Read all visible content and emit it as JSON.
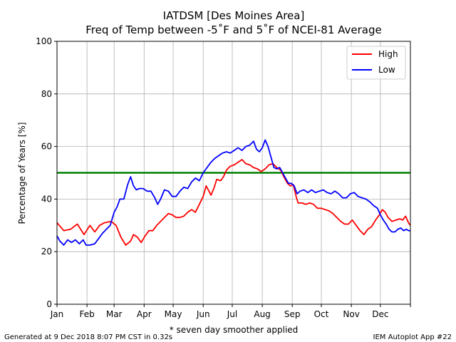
{
  "header": {
    "title_line1": "IATDSM [Des Moines Area]",
    "title_line2": "Freq of Temp between -5˚F and 5˚F of NCEI-81 Average"
  },
  "footer": {
    "generated": "Generated at 9 Dec 2018 8:07 PM CST in 0.32s",
    "app": "IEM Autoplot App #22"
  },
  "chart_data": {
    "type": "line",
    "xlabel": "* seven day smoother applied",
    "ylabel": "Percentage of Years [%]",
    "xlim": [
      1,
      366
    ],
    "ylim": [
      0,
      100
    ],
    "grid": true,
    "legend_position": "top-right",
    "x_ticks": [
      {
        "label": "Jan",
        "day": 1
      },
      {
        "label": "Feb",
        "day": 32
      },
      {
        "label": "Mar",
        "day": 60
      },
      {
        "label": "Apr",
        "day": 91
      },
      {
        "label": "May",
        "day": 121
      },
      {
        "label": "Jun",
        "day": 152
      },
      {
        "label": "Jul",
        "day": 182
      },
      {
        "label": "Aug",
        "day": 213
      },
      {
        "label": "Sep",
        "day": 244
      },
      {
        "label": "Oct",
        "day": 274
      },
      {
        "label": "Nov",
        "day": 305
      },
      {
        "label": "Dec",
        "day": 335
      }
    ],
    "y_ticks": [
      0,
      20,
      40,
      60,
      80,
      100
    ],
    "reference_line": {
      "value": 50,
      "color": "#008000"
    },
    "series": [
      {
        "name": "High",
        "color": "#ff0000",
        "points": [
          [
            1,
            31
          ],
          [
            8,
            28
          ],
          [
            15,
            28.5
          ],
          [
            22,
            30.5
          ],
          [
            29,
            26.5
          ],
          [
            35,
            30
          ],
          [
            40,
            27.5
          ],
          [
            45,
            30
          ],
          [
            50,
            31
          ],
          [
            57,
            31.5
          ],
          [
            62,
            30
          ],
          [
            67,
            25.5
          ],
          [
            72,
            22.5
          ],
          [
            77,
            24
          ],
          [
            80,
            26.5
          ],
          [
            84,
            25.5
          ],
          [
            88,
            23.5
          ],
          [
            92,
            26
          ],
          [
            96,
            28
          ],
          [
            100,
            28
          ],
          [
            104,
            30
          ],
          [
            108,
            31.5
          ],
          [
            112,
            33
          ],
          [
            116,
            34.5
          ],
          [
            120,
            34
          ],
          [
            124,
            33
          ],
          [
            128,
            33
          ],
          [
            132,
            33.5
          ],
          [
            136,
            35
          ],
          [
            140,
            36
          ],
          [
            144,
            35
          ],
          [
            148,
            38
          ],
          [
            152,
            41
          ],
          [
            155,
            45
          ],
          [
            158,
            43
          ],
          [
            160,
            41.5
          ],
          [
            163,
            44
          ],
          [
            166,
            47.5
          ],
          [
            170,
            47
          ],
          [
            173,
            48.5
          ],
          [
            176,
            51
          ],
          [
            180,
            52.5
          ],
          [
            184,
            53
          ],
          [
            188,
            54
          ],
          [
            192,
            55
          ],
          [
            196,
            53.5
          ],
          [
            200,
            53
          ],
          [
            204,
            52
          ],
          [
            208,
            51.5
          ],
          [
            212,
            50.5
          ],
          [
            216,
            51.5
          ],
          [
            220,
            53
          ],
          [
            224,
            53.5
          ],
          [
            228,
            52
          ],
          [
            232,
            51
          ],
          [
            236,
            48
          ],
          [
            239,
            46
          ],
          [
            242,
            45
          ],
          [
            245,
            45.5
          ],
          [
            248,
            41
          ],
          [
            250,
            38.5
          ],
          [
            254,
            38.5
          ],
          [
            258,
            38
          ],
          [
            262,
            38.5
          ],
          [
            266,
            38
          ],
          [
            270,
            36.5
          ],
          [
            274,
            36.5
          ],
          [
            278,
            36
          ],
          [
            282,
            35.5
          ],
          [
            286,
            34.5
          ],
          [
            290,
            33
          ],
          [
            294,
            31.5
          ],
          [
            298,
            30.5
          ],
          [
            302,
            30.5
          ],
          [
            306,
            32
          ],
          [
            310,
            30
          ],
          [
            314,
            28
          ],
          [
            318,
            26.5
          ],
          [
            322,
            28.5
          ],
          [
            326,
            29.5
          ],
          [
            330,
            32
          ],
          [
            334,
            34
          ],
          [
            337,
            36
          ],
          [
            340,
            35
          ],
          [
            343,
            33
          ],
          [
            347,
            31.5
          ],
          [
            351,
            32
          ],
          [
            355,
            32.5
          ],
          [
            358,
            32
          ],
          [
            361,
            33.5
          ],
          [
            364,
            31
          ],
          [
            366,
            30
          ]
        ]
      },
      {
        "name": "Low",
        "color": "#0000ff",
        "points": [
          [
            1,
            26
          ],
          [
            4,
            24
          ],
          [
            8,
            22.5
          ],
          [
            12,
            24.5
          ],
          [
            16,
            23.5
          ],
          [
            20,
            24.5
          ],
          [
            24,
            23
          ],
          [
            28,
            24.5
          ],
          [
            31,
            22.5
          ],
          [
            35,
            22.5
          ],
          [
            40,
            23
          ],
          [
            44,
            25
          ],
          [
            48,
            27
          ],
          [
            52,
            28.5
          ],
          [
            56,
            30
          ],
          [
            60,
            35
          ],
          [
            63,
            37
          ],
          [
            66,
            40
          ],
          [
            70,
            40
          ],
          [
            74,
            45.5
          ],
          [
            77,
            48.5
          ],
          [
            80,
            45
          ],
          [
            83,
            43.5
          ],
          [
            86,
            44
          ],
          [
            90,
            44
          ],
          [
            94,
            43
          ],
          [
            98,
            43
          ],
          [
            102,
            40.5
          ],
          [
            105,
            38
          ],
          [
            108,
            40
          ],
          [
            112,
            43.5
          ],
          [
            116,
            43
          ],
          [
            120,
            41
          ],
          [
            124,
            41
          ],
          [
            128,
            43
          ],
          [
            132,
            44.5
          ],
          [
            136,
            44
          ],
          [
            140,
            46.5
          ],
          [
            144,
            48
          ],
          [
            148,
            47
          ],
          [
            152,
            50
          ],
          [
            156,
            52
          ],
          [
            160,
            54
          ],
          [
            164,
            55.5
          ],
          [
            168,
            56.5
          ],
          [
            172,
            57.5
          ],
          [
            176,
            58
          ],
          [
            180,
            57.5
          ],
          [
            184,
            58.5
          ],
          [
            188,
            59.5
          ],
          [
            192,
            58.5
          ],
          [
            196,
            60
          ],
          [
            200,
            60.5
          ],
          [
            204,
            62
          ],
          [
            207,
            59
          ],
          [
            210,
            58
          ],
          [
            213,
            59.5
          ],
          [
            216,
            62.5
          ],
          [
            219,
            60
          ],
          [
            222,
            56
          ],
          [
            225,
            52
          ],
          [
            228,
            51.5
          ],
          [
            231,
            52
          ],
          [
            234,
            50
          ],
          [
            237,
            48
          ],
          [
            240,
            46
          ],
          [
            243,
            46
          ],
          [
            246,
            45
          ],
          [
            249,
            42
          ],
          [
            252,
            43
          ],
          [
            256,
            43.5
          ],
          [
            260,
            42.5
          ],
          [
            264,
            43.5
          ],
          [
            268,
            42.5
          ],
          [
            272,
            43
          ],
          [
            276,
            43.5
          ],
          [
            280,
            42.5
          ],
          [
            284,
            42
          ],
          [
            288,
            43
          ],
          [
            292,
            42
          ],
          [
            296,
            40.5
          ],
          [
            300,
            40.5
          ],
          [
            304,
            42
          ],
          [
            308,
            42.5
          ],
          [
            312,
            41
          ],
          [
            316,
            40.5
          ],
          [
            320,
            40
          ],
          [
            324,
            39
          ],
          [
            328,
            37.5
          ],
          [
            332,
            36.5
          ],
          [
            335,
            34
          ],
          [
            338,
            32
          ],
          [
            341,
            30.5
          ],
          [
            344,
            28.5
          ],
          [
            347,
            27.5
          ],
          [
            350,
            27.5
          ],
          [
            353,
            28.5
          ],
          [
            356,
            29
          ],
          [
            359,
            28
          ],
          [
            362,
            28.5
          ],
          [
            364,
            28
          ],
          [
            366,
            28
          ]
        ]
      }
    ]
  }
}
